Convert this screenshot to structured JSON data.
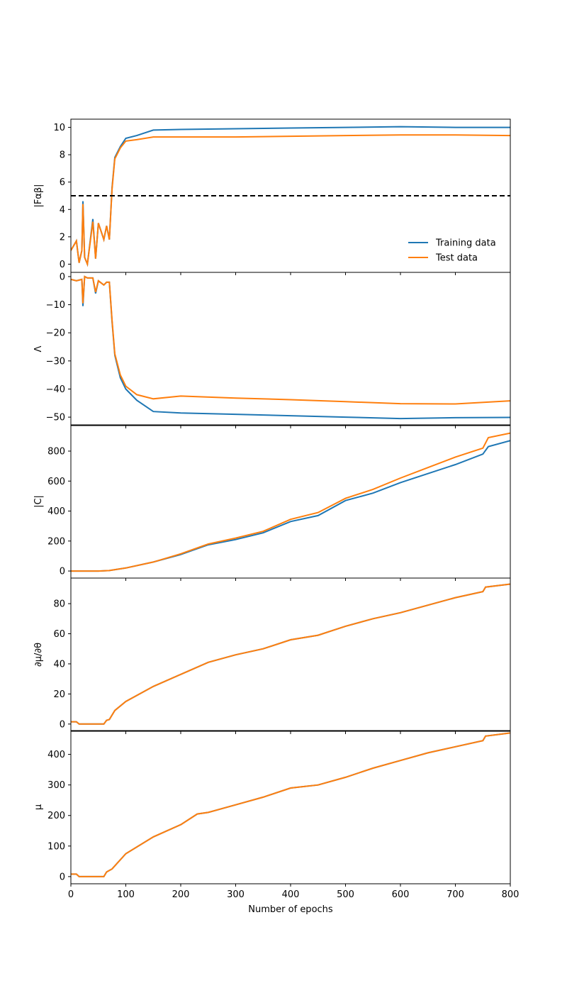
{
  "figure": {
    "xlabel": "Number of epochs",
    "x_ticks": [
      "0",
      "100",
      "200",
      "300",
      "400",
      "500",
      "600",
      "700",
      "800"
    ],
    "xlim": [
      0,
      800
    ]
  },
  "legend": {
    "placement": "lower-right of top panel",
    "entries": [
      {
        "label": "Training data",
        "color": "#1f77b4"
      },
      {
        "label": "Test data",
        "color": "#ff7f0e"
      }
    ]
  },
  "colors": {
    "training": "#1f77b4",
    "test": "#ff7f0e",
    "reference_line": "#000000"
  },
  "chart_data": [
    {
      "type": "line",
      "ylabel": "|Fαβ|",
      "ylim": [
        -0.6,
        10.6
      ],
      "y_ticks": [
        "0",
        "2",
        "4",
        "6",
        "8",
        "10"
      ],
      "y_tick_values": [
        0,
        2,
        4,
        6,
        8,
        10
      ],
      "reference_line": {
        "y": 5,
        "style": "dashed"
      },
      "series": [
        {
          "name": "Training data",
          "x": [
            0,
            10,
            15,
            20,
            22,
            25,
            30,
            40,
            45,
            50,
            60,
            65,
            70,
            75,
            80,
            90,
            100,
            120,
            150,
            200,
            300,
            400,
            500,
            600,
            700,
            800
          ],
          "y": [
            1.0,
            1.7,
            0.1,
            1.0,
            4.6,
            0.5,
            0.0,
            3.3,
            0.4,
            3.0,
            1.8,
            2.8,
            1.8,
            5.6,
            7.8,
            8.6,
            9.2,
            9.4,
            9.8,
            9.85,
            9.9,
            9.95,
            10.0,
            10.05,
            10.0,
            10.0
          ]
        },
        {
          "name": "Test data",
          "x": [
            0,
            10,
            15,
            20,
            22,
            25,
            30,
            40,
            45,
            50,
            60,
            65,
            70,
            75,
            80,
            90,
            100,
            120,
            150,
            200,
            300,
            400,
            500,
            600,
            700,
            800
          ],
          "y": [
            1.0,
            1.7,
            0.1,
            1.0,
            4.4,
            0.5,
            0.0,
            3.1,
            0.4,
            3.0,
            1.8,
            2.8,
            1.8,
            5.5,
            7.7,
            8.5,
            9.0,
            9.1,
            9.3,
            9.3,
            9.3,
            9.35,
            9.4,
            9.45,
            9.45,
            9.4
          ]
        }
      ]
    },
    {
      "type": "line",
      "ylabel": "Λ",
      "ylim": [
        -53,
        1.5
      ],
      "y_ticks": [
        "0",
        "−10",
        "−20",
        "−30",
        "−40",
        "−50"
      ],
      "y_tick_values": [
        0,
        -10,
        -20,
        -30,
        -40,
        -50
      ],
      "series": [
        {
          "name": "Training data",
          "x": [
            0,
            10,
            20,
            22,
            25,
            30,
            40,
            45,
            50,
            60,
            65,
            70,
            75,
            80,
            90,
            100,
            120,
            150,
            200,
            300,
            400,
            500,
            600,
            700,
            800
          ],
          "y": [
            -1,
            -1.5,
            -1,
            -10.5,
            0,
            -0.5,
            -0.5,
            -6,
            -1.5,
            -3,
            -2,
            -2,
            -16,
            -28,
            -36,
            -40,
            -44,
            -48,
            -48.5,
            -49,
            -49.5,
            -50,
            -50.5,
            -50.2,
            -50.1
          ]
        },
        {
          "name": "Test data",
          "x": [
            0,
            10,
            20,
            22,
            25,
            30,
            40,
            45,
            50,
            60,
            65,
            70,
            75,
            80,
            90,
            100,
            120,
            150,
            200,
            300,
            400,
            500,
            600,
            700,
            800
          ],
          "y": [
            -1,
            -1.5,
            -1,
            -9.5,
            0,
            -0.5,
            -0.5,
            -5.5,
            -1.5,
            -3,
            -2,
            -2,
            -15.5,
            -27.5,
            -35,
            -39,
            -42,
            -43.5,
            -42.5,
            -43.2,
            -43.8,
            -44.5,
            -45.2,
            -45.3,
            -44.2
          ]
        }
      ]
    },
    {
      "type": "line",
      "ylabel": "|C|",
      "ylim": [
        -47,
        975
      ],
      "y_ticks": [
        "0",
        "200",
        "400",
        "600",
        "800"
      ],
      "y_tick_values": [
        0,
        200,
        400,
        600,
        800
      ],
      "series": [
        {
          "name": "Training data",
          "x": [
            0,
            50,
            70,
            100,
            150,
            200,
            250,
            300,
            350,
            400,
            450,
            500,
            550,
            600,
            650,
            700,
            750,
            760,
            800
          ],
          "y": [
            0,
            0,
            3,
            20,
            60,
            110,
            175,
            210,
            255,
            330,
            370,
            470,
            520,
            590,
            650,
            710,
            780,
            830,
            870
          ]
        },
        {
          "name": "Test data",
          "x": [
            0,
            50,
            70,
            100,
            150,
            200,
            250,
            300,
            350,
            400,
            450,
            500,
            550,
            600,
            650,
            700,
            750,
            760,
            800
          ],
          "y": [
            0,
            0,
            3,
            20,
            60,
            115,
            180,
            220,
            265,
            345,
            390,
            485,
            545,
            620,
            690,
            760,
            820,
            890,
            920
          ]
        }
      ]
    },
    {
      "type": "line",
      "ylabel": "∂μ/∂θ",
      "ylim": [
        -4.8,
        97
      ],
      "y_ticks": [
        "0",
        "20",
        "40",
        "60",
        "80"
      ],
      "y_tick_values": [
        0,
        20,
        40,
        60,
        80
      ],
      "series": [
        {
          "name": "Training data",
          "x": [
            0,
            10,
            15,
            60,
            65,
            70,
            80,
            100,
            150,
            200,
            250,
            300,
            350,
            400,
            450,
            500,
            550,
            600,
            650,
            700,
            750,
            755,
            800
          ],
          "y": [
            1.5,
            1.5,
            0,
            0,
            2.5,
            3,
            9,
            15,
            25,
            33,
            41,
            46,
            50,
            56,
            59,
            65,
            70,
            74,
            79,
            84,
            88,
            91,
            93
          ]
        },
        {
          "name": "Test data",
          "x": [
            0,
            10,
            15,
            60,
            65,
            70,
            80,
            100,
            150,
            200,
            250,
            300,
            350,
            400,
            450,
            500,
            550,
            600,
            650,
            700,
            750,
            755,
            800
          ],
          "y": [
            1.5,
            1.5,
            0,
            0,
            2.5,
            3,
            9,
            15,
            25,
            33,
            41,
            46,
            50,
            56,
            59,
            65,
            70,
            74,
            79,
            84,
            88,
            91,
            93
          ]
        }
      ]
    },
    {
      "type": "line",
      "ylabel": "μ",
      "ylim": [
        -23.5,
        478
      ],
      "y_ticks": [
        "0",
        "100",
        "200",
        "300",
        "400"
      ],
      "y_tick_values": [
        0,
        100,
        200,
        300,
        400
      ],
      "series": [
        {
          "name": "Training data",
          "x": [
            0,
            10,
            15,
            60,
            65,
            75,
            100,
            150,
            200,
            230,
            250,
            300,
            350,
            400,
            450,
            500,
            550,
            600,
            650,
            700,
            750,
            755,
            800
          ],
          "y": [
            8,
            8,
            0,
            0,
            15,
            25,
            75,
            130,
            170,
            205,
            210,
            235,
            260,
            290,
            300,
            325,
            355,
            380,
            405,
            425,
            445,
            460,
            470
          ]
        },
        {
          "name": "Test data",
          "x": [
            0,
            10,
            15,
            60,
            65,
            75,
            100,
            150,
            200,
            230,
            250,
            300,
            350,
            400,
            450,
            500,
            550,
            600,
            650,
            700,
            750,
            755,
            800
          ],
          "y": [
            8,
            8,
            0,
            0,
            15,
            25,
            75,
            130,
            170,
            205,
            210,
            235,
            260,
            290,
            300,
            325,
            355,
            380,
            405,
            425,
            445,
            460,
            470
          ]
        }
      ]
    }
  ]
}
